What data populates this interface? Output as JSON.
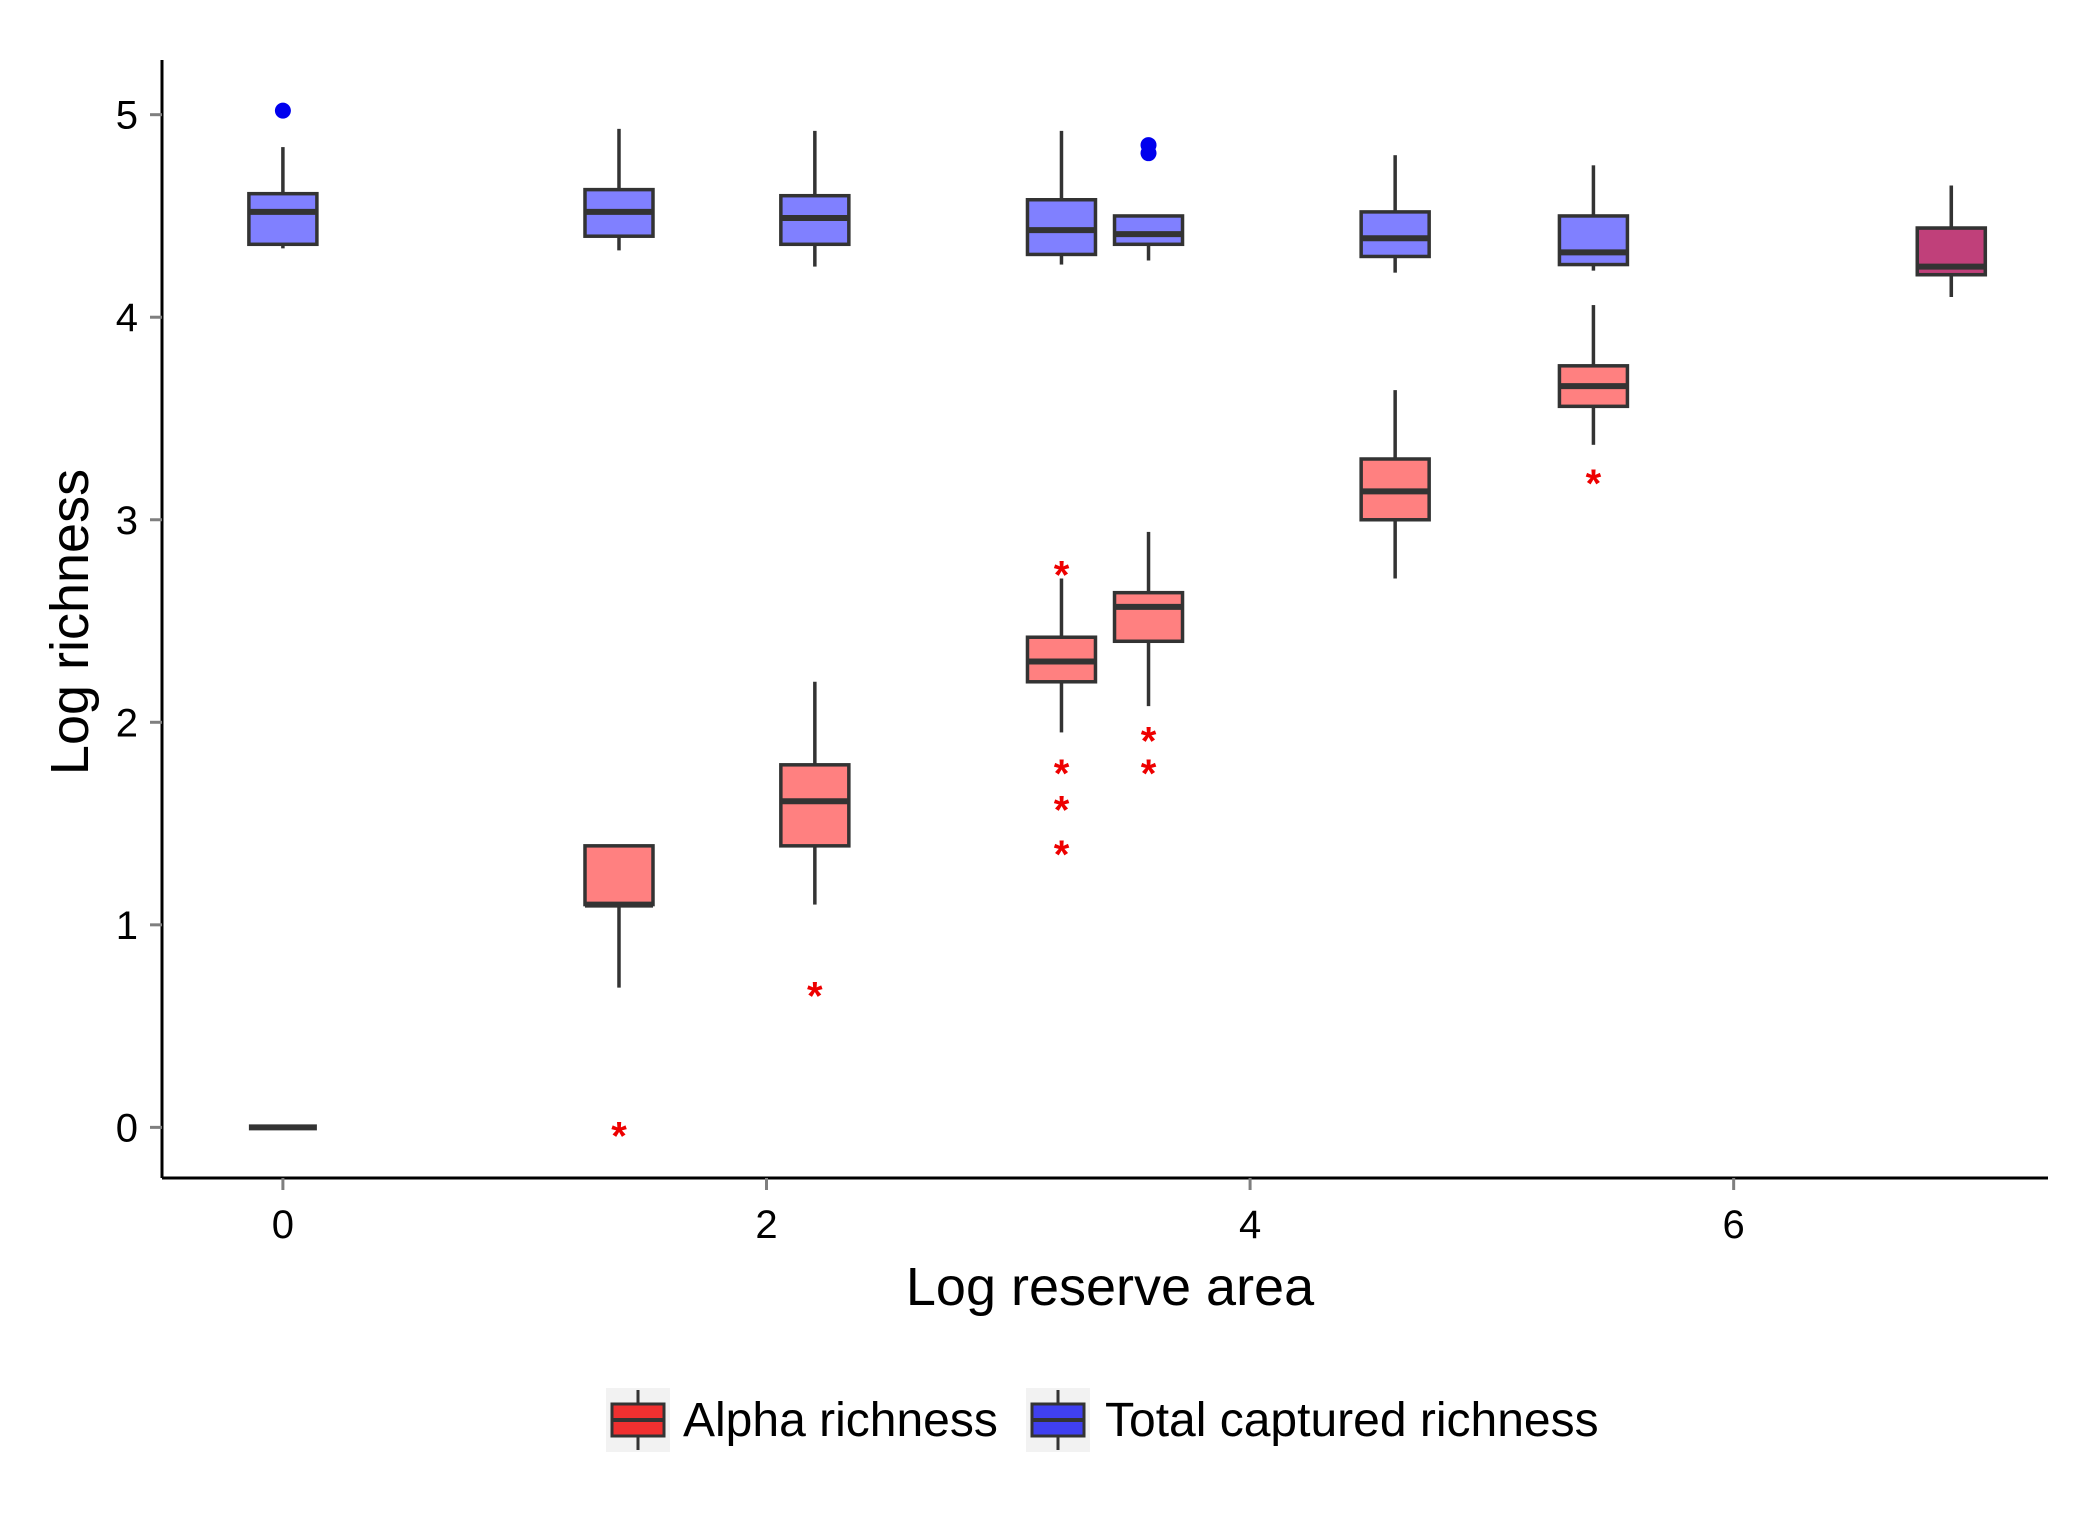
{
  "chart_data": {
    "type": "boxplot",
    "xlabel": "Log reserve area",
    "ylabel": "Log richness",
    "xlim": [
      -0.5,
      7.3
    ],
    "ylim": [
      -0.25,
      5.27
    ],
    "x_ticks": [
      0,
      2,
      4,
      6
    ],
    "y_ticks": [
      0,
      1,
      2,
      3,
      4,
      5
    ],
    "grid": false,
    "legend_position": "bottom",
    "series": [
      {
        "name": "Alpha richness",
        "key": "alpha",
        "color": "#ff8080",
        "legend_color": "#f03030",
        "outlier_color": "#ee0000",
        "outlier_symbol": "*",
        "boxes": [
          {
            "x": 0.0,
            "min": 0.0,
            "q1": 0.0,
            "median": 0.0,
            "q3": 0.0,
            "max": 0.0,
            "outliers": []
          },
          {
            "x": 1.39,
            "min": 0.69,
            "q1": 1.1,
            "median": 1.1,
            "q3": 1.39,
            "max": 1.39,
            "outliers": [
              0.0
            ]
          },
          {
            "x": 2.2,
            "min": 1.1,
            "q1": 1.39,
            "median": 1.61,
            "q3": 1.79,
            "max": 2.2,
            "outliers": [
              0.69
            ]
          },
          {
            "x": 3.22,
            "min": 1.95,
            "q1": 2.2,
            "median": 2.3,
            "q3": 2.42,
            "max": 2.71,
            "outliers": [
              2.77,
              1.79,
              1.61,
              1.39
            ]
          },
          {
            "x": 3.58,
            "min": 2.08,
            "q1": 2.4,
            "median": 2.57,
            "q3": 2.64,
            "max": 2.94,
            "outliers": [
              1.95,
              1.79
            ]
          },
          {
            "x": 4.6,
            "min": 2.71,
            "q1": 3.0,
            "median": 3.14,
            "q3": 3.3,
            "max": 3.64,
            "outliers": []
          },
          {
            "x": 5.42,
            "min": 3.37,
            "q1": 3.56,
            "median": 3.66,
            "q3": 3.76,
            "max": 4.06,
            "outliers": [
              3.22
            ]
          },
          {
            "x": 6.9,
            "min": 4.1,
            "q1": 4.21,
            "median": 4.25,
            "q3": 4.44,
            "max": 4.65,
            "outliers": [],
            "overlap": true
          }
        ]
      },
      {
        "name": "Total captured richness",
        "key": "total",
        "color": "#8080ff",
        "legend_color": "#4040f0",
        "outlier_color": "#0000ee",
        "outlier_symbol": "dot",
        "boxes": [
          {
            "x": 0.0,
            "min": 4.34,
            "q1": 4.36,
            "median": 4.52,
            "q3": 4.61,
            "max": 4.84,
            "outliers": [
              5.02
            ]
          },
          {
            "x": 1.39,
            "min": 4.33,
            "q1": 4.4,
            "median": 4.52,
            "q3": 4.63,
            "max": 4.93,
            "outliers": []
          },
          {
            "x": 2.2,
            "min": 4.25,
            "q1": 4.36,
            "median": 4.49,
            "q3": 4.6,
            "max": 4.92,
            "outliers": []
          },
          {
            "x": 3.22,
            "min": 4.26,
            "q1": 4.31,
            "median": 4.43,
            "q3": 4.58,
            "max": 4.92,
            "outliers": []
          },
          {
            "x": 3.58,
            "min": 4.28,
            "q1": 4.36,
            "median": 4.41,
            "q3": 4.5,
            "max": 4.5,
            "outliers": [
              4.85,
              4.81
            ]
          },
          {
            "x": 4.6,
            "min": 4.22,
            "q1": 4.3,
            "median": 4.39,
            "q3": 4.52,
            "max": 4.8,
            "outliers": []
          },
          {
            "x": 5.42,
            "min": 4.23,
            "q1": 4.26,
            "median": 4.32,
            "q3": 4.5,
            "max": 4.75,
            "outliers": []
          },
          {
            "x": 6.9,
            "min": 4.1,
            "q1": 4.21,
            "median": 4.25,
            "q3": 4.44,
            "max": 4.65,
            "outliers": [],
            "overlap": true
          }
        ]
      }
    ],
    "overlap_color": "#c0407a"
  }
}
